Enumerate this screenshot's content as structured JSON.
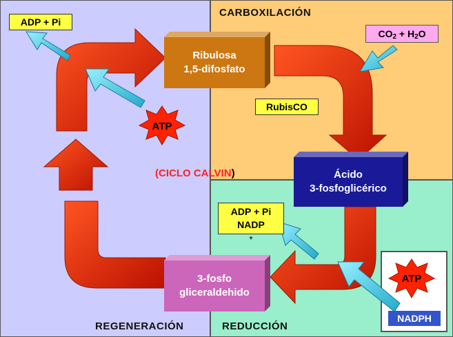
{
  "regions": {
    "regeneration": {
      "title": "REGENERACIÓN",
      "color": "#ccccff"
    },
    "carboxylation": {
      "title": "CARBOXILACIÓN",
      "color": "#ffcc77"
    },
    "reduction": {
      "title": "REDUCCIÓN",
      "color": "#99eecc"
    }
  },
  "compounds": {
    "ribulose": {
      "line1": "Ribulosa",
      "line2": "1,5-difosfato",
      "color": "#cc7711"
    },
    "phosphoglyceric": {
      "line1": "Ácido",
      "line2": "3-fosfoglicérico",
      "color": "#1a1a99"
    },
    "glyceraldehyde": {
      "line1": "3-fosfo",
      "line2": "gliceraldehido",
      "color": "#cc66bb"
    }
  },
  "labels": {
    "adp_pi_top": "ADP + Pi",
    "co2": {
      "a": "CO",
      "a_sub": "2",
      "b": " + H",
      "b_sub": "2",
      "c": "O"
    },
    "rubisco": "RubisCO",
    "adp_mid_1": "ADP + Pi",
    "adp_mid_2": "NADP",
    "adp_mid_2_sup": "+",
    "atp_1": "ATP",
    "atp_2": "ATP",
    "nadph": "NADPH"
  },
  "cycle": {
    "open": "(",
    "name": "CICLO CALVIN",
    "close": ")"
  },
  "colors": {
    "cycle_arrow": "#dd2200",
    "input_arrow": "#33ccee",
    "label_yellow": "#ffff44",
    "label_pink": "#ffaaee",
    "star": "#ff2200"
  }
}
